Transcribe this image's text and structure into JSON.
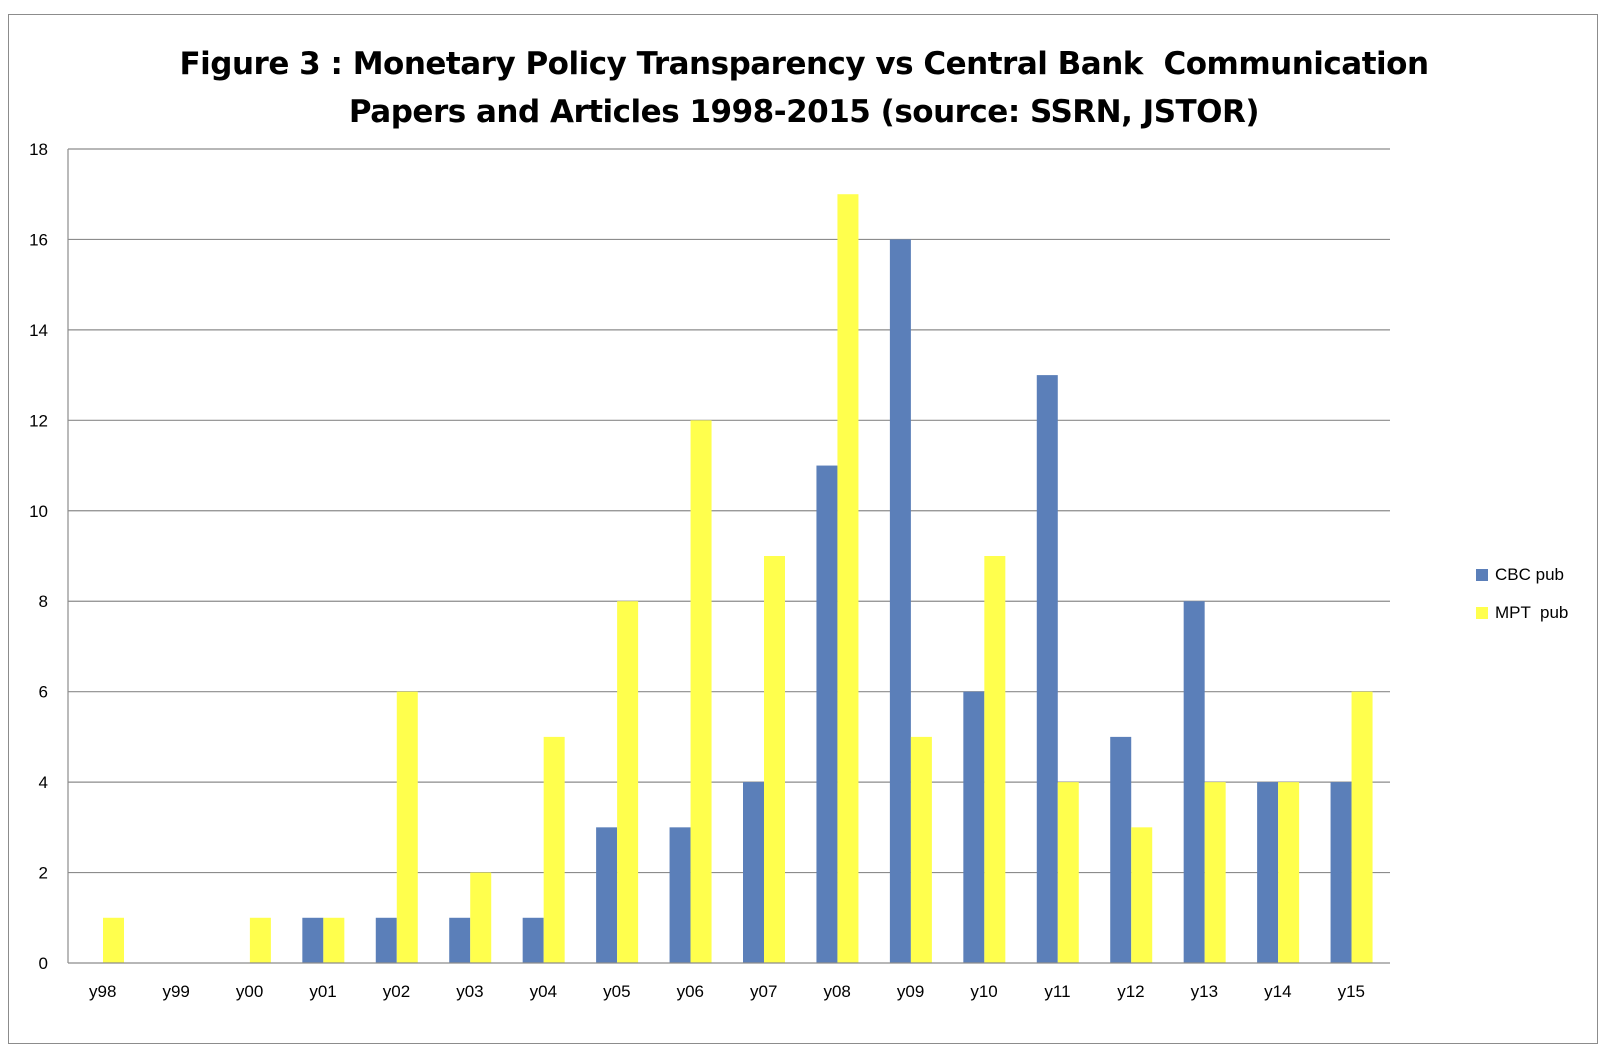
{
  "chart_data": {
    "type": "bar",
    "title_lines": [
      "Figure 3 : Monetary Policy Transparency vs Central Bank  Communication",
      "Papers and Articles 1998-2015 (source: SSRN, JSTOR)"
    ],
    "categories": [
      "y98",
      "y99",
      "y00",
      "y01",
      "y02",
      "y03",
      "y04",
      "y05",
      "y06",
      "y07",
      "y08",
      "y09",
      "y10",
      "y11",
      "y12",
      "y13",
      "y14",
      "y15"
    ],
    "series": [
      {
        "name": "CBC pub",
        "color": "#5b7fb9",
        "values": [
          0,
          0,
          0,
          1,
          1,
          1,
          1,
          3,
          3,
          4,
          11,
          16,
          6,
          13,
          5,
          8,
          4,
          4
        ]
      },
      {
        "name": "MPT  pub",
        "color": "#ffff4d",
        "values": [
          1,
          0,
          1,
          1,
          6,
          2,
          5,
          8,
          12,
          9,
          17,
          5,
          9,
          4,
          3,
          4,
          4,
          6
        ]
      }
    ],
    "ylim": [
      0,
      18
    ],
    "yticks": [
      0,
      2,
      4,
      6,
      8,
      10,
      12,
      14,
      16,
      18
    ],
    "grid": true,
    "legend_position": "right",
    "xlabel": "",
    "ylabel": ""
  }
}
